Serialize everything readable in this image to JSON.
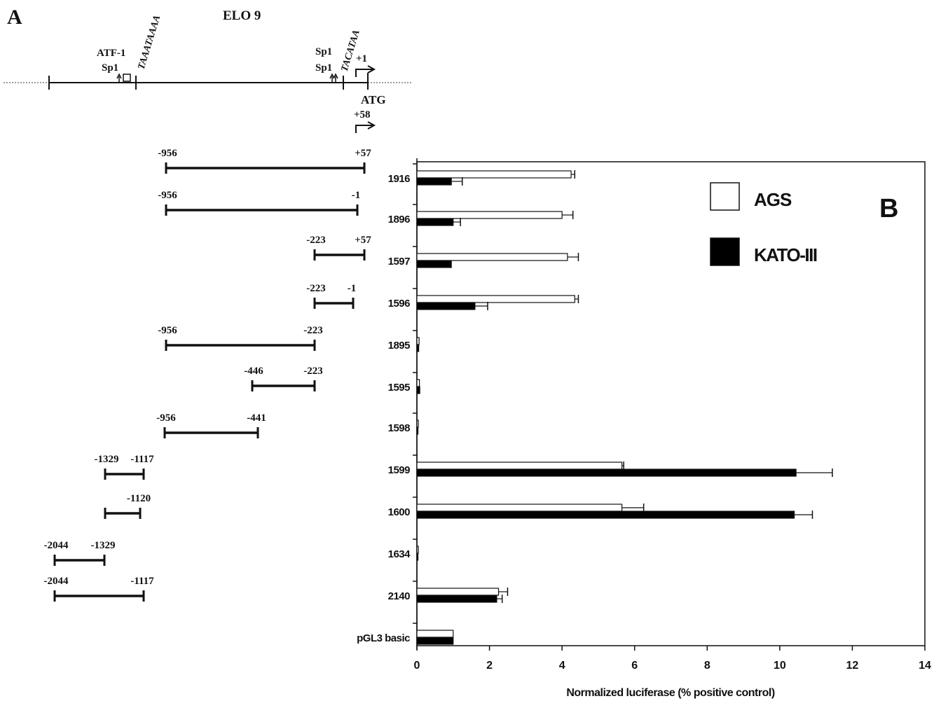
{
  "panel_a": {
    "label": "A",
    "gene": "ELO 9",
    "elements": {
      "atf1": "ATF-1",
      "sp1_left": "Sp1",
      "taaataaaa": "TAAATAAAA",
      "sp1_right_top": "Sp1",
      "sp1_right_bottom": "Sp1",
      "tacataa": "TACATAA",
      "tss": "+1",
      "atg": "ATG",
      "atg_pos": "+58"
    },
    "constructs": [
      {
        "left": "-956",
        "right": "+57"
      },
      {
        "left": "-956",
        "right": "-1"
      },
      {
        "left": "-223",
        "right": "+57"
      },
      {
        "left": "-223",
        "right": "-1"
      },
      {
        "left": "-956",
        "right": "-223"
      },
      {
        "left": "-446",
        "right": "-223"
      },
      {
        "left": "-956",
        "right": "-441"
      },
      {
        "left": "-1329",
        "right": "-1117"
      },
      {
        "left": "",
        "right": "-1120"
      },
      {
        "left": "-2044",
        "right": "-1329"
      },
      {
        "left": "-2044",
        "right": "-1117"
      }
    ]
  },
  "panel_b": {
    "label": "B"
  },
  "chart_data": {
    "type": "bar",
    "orientation": "horizontal",
    "categories": [
      "1916",
      "1896",
      "1597",
      "1596",
      "1895",
      "1595",
      "1598",
      "1599",
      "1600",
      "1634",
      "2140",
      "pGL3 basic"
    ],
    "series": [
      {
        "name": "AGS",
        "color": "#ffffff",
        "values": [
          4.25,
          4.0,
          4.15,
          4.35,
          0.06,
          0.07,
          0.04,
          5.65,
          5.65,
          0.04,
          2.25,
          1.0
        ],
        "errors": [
          0.1,
          0.3,
          0.3,
          0.1,
          0.02,
          0.02,
          0.01,
          0.05,
          0.6,
          0.01,
          0.25,
          0.0
        ]
      },
      {
        "name": "KATO-III",
        "color": "#000000",
        "values": [
          0.95,
          1.0,
          0.95,
          1.6,
          0.05,
          0.08,
          0.03,
          10.45,
          10.4,
          0.03,
          2.2,
          1.0
        ],
        "errors": [
          0.3,
          0.2,
          0.0,
          0.35,
          0.02,
          0.03,
          0.01,
          1.0,
          0.5,
          0.01,
          0.15,
          0.0
        ]
      }
    ],
    "xlabel": "Normalized luciferase (% positive control)",
    "ylabel": "",
    "xlim": [
      0,
      14
    ],
    "xticks": [
      0,
      2,
      4,
      6,
      8,
      10,
      12,
      14
    ],
    "legend_position": "top-right",
    "grid": false
  }
}
